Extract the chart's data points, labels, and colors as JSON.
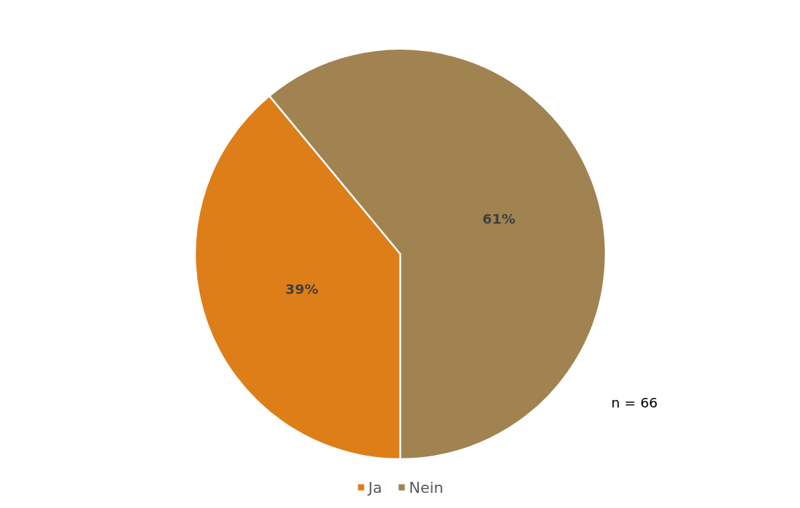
{
  "chart_data": {
    "type": "pie",
    "categories": [
      "Ja",
      "Nein"
    ],
    "values": [
      39,
      61
    ],
    "colors": [
      "#de7e18",
      "#a08350"
    ],
    "value_labels": [
      "39%",
      "61%"
    ],
    "legend": "bottom",
    "annotations": [
      "n = 66"
    ]
  }
}
